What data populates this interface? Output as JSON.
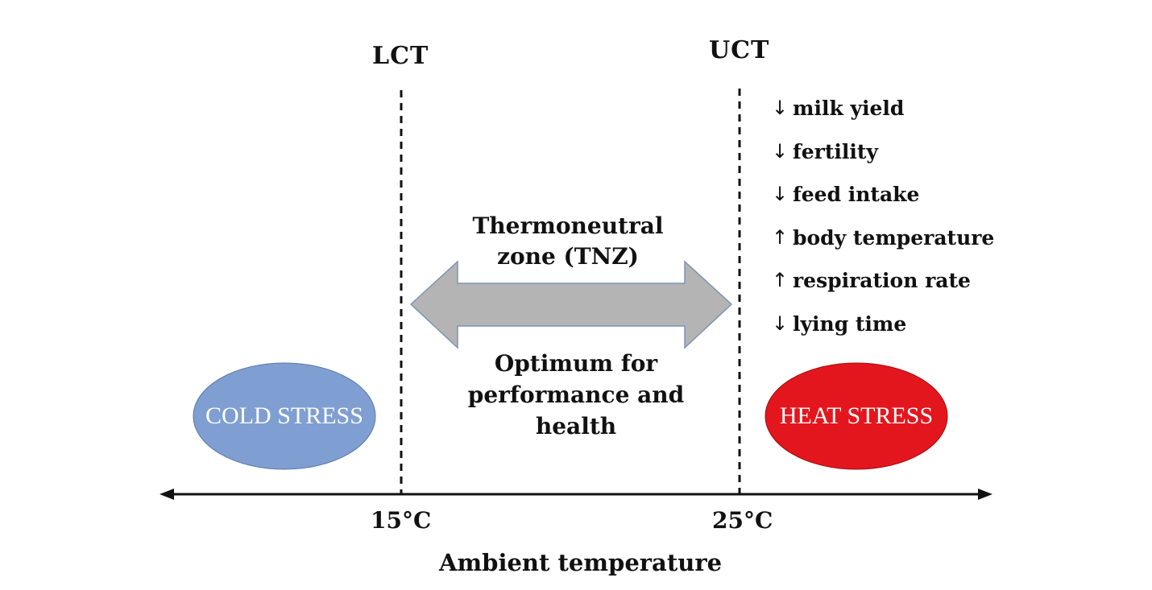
{
  "thresholds": {
    "lower": "LCT",
    "upper": "UCT"
  },
  "axis": {
    "title": "Ambient temperature",
    "ticks": [
      "15°C",
      "25°C"
    ]
  },
  "zone": {
    "title": "Thermoneutral zone (TNZ)",
    "description": "Optimum for performance and health"
  },
  "stress": {
    "cold": "COLD STRESS",
    "heat": "HEAT STRESS"
  },
  "effects": [
    {
      "direction": "↓",
      "text": "milk yield"
    },
    {
      "direction": "↓",
      "text": "fertility"
    },
    {
      "direction": "↓",
      "text": "feed intake"
    },
    {
      "direction": "↑",
      "text": "body temperature"
    },
    {
      "direction": "↑",
      "text": "respiration rate"
    },
    {
      "direction": "↓",
      "text": "lying time"
    }
  ],
  "colors": {
    "cold": "#7f9fd2",
    "heat": "#e4161d",
    "arrow_fill": "#b4b4b4",
    "arrow_stroke": "#7f92b8"
  }
}
